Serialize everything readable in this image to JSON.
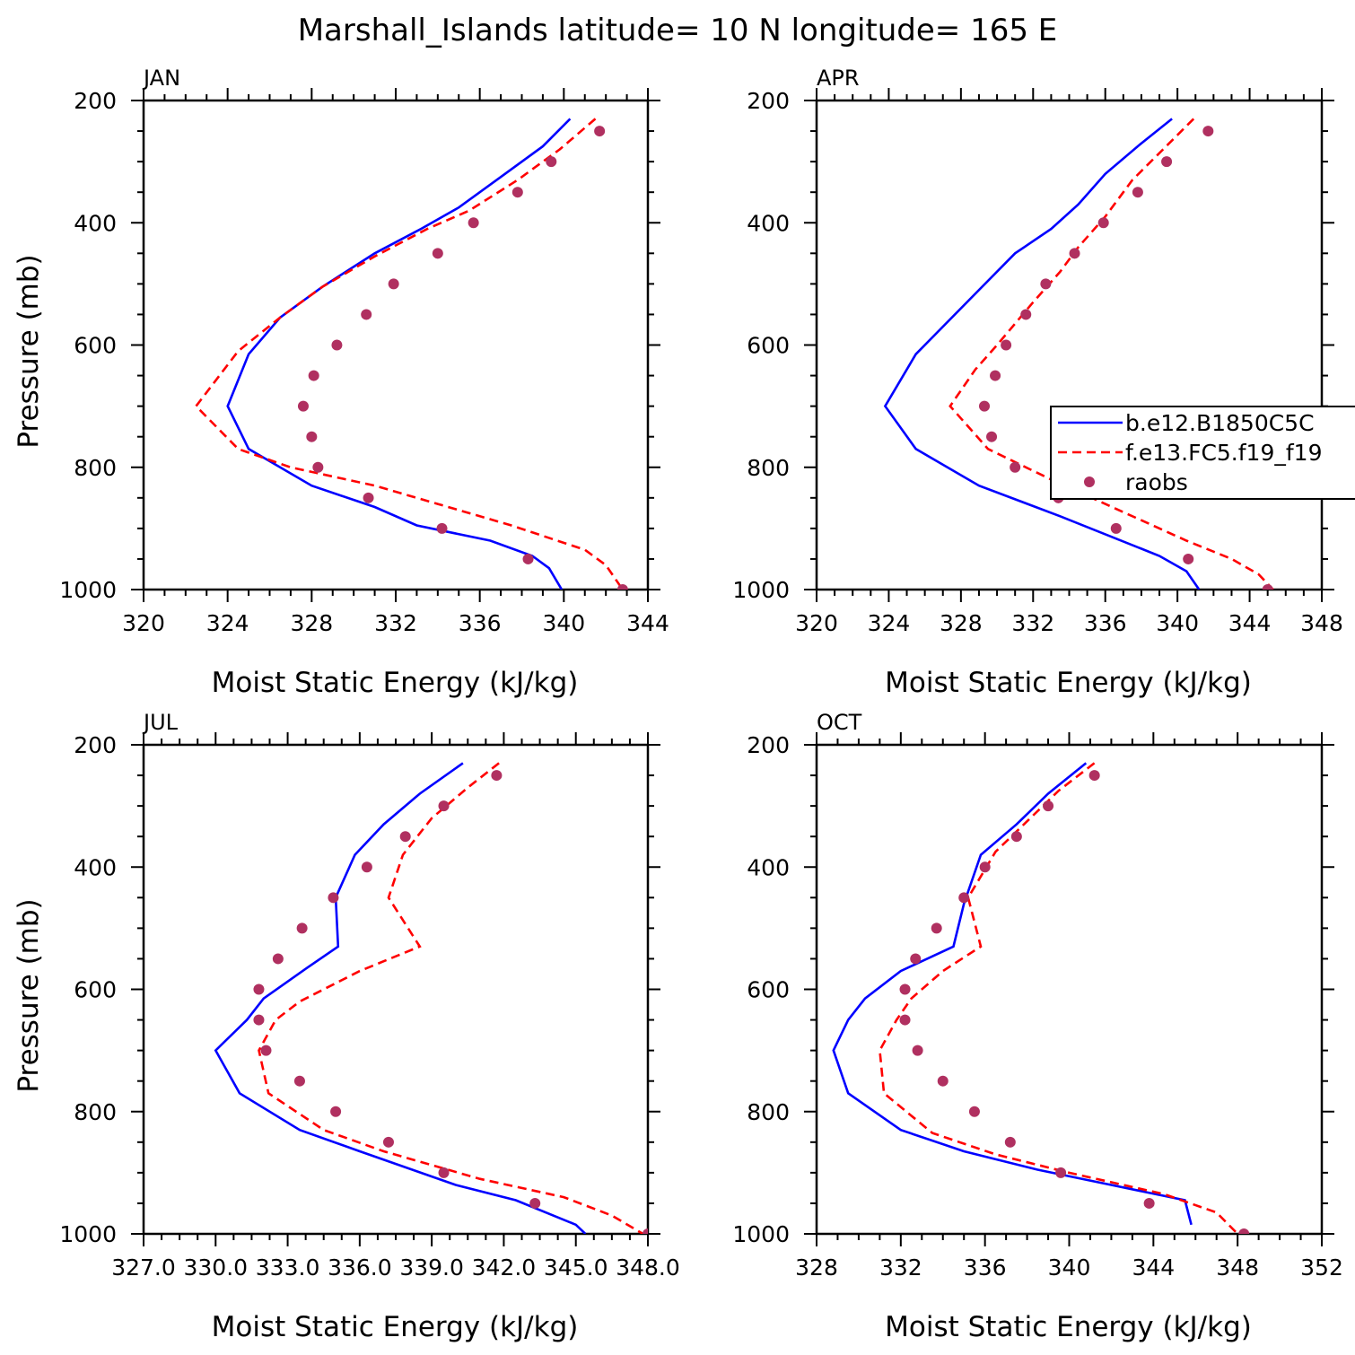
{
  "figure": {
    "title": "Marshall_Islands  latitude= 10 N longitude= 165 E"
  },
  "colors": {
    "model_b": "#0000ff",
    "model_f": "#ff0000",
    "raobs": "#b03060"
  },
  "chart_data": [
    {
      "type": "line",
      "panel_label": "JAN",
      "xlabel": "Moist Static Energy (kJ/kg)",
      "ylabel": "Pressure (mb)",
      "xlim": [
        320,
        344
      ],
      "ylim": [
        1000,
        200
      ],
      "y_inverted": true,
      "x_ticks": [
        320,
        324,
        328,
        332,
        336,
        340,
        344
      ],
      "y_ticks": [
        200,
        400,
        600,
        800,
        1000
      ],
      "series": [
        {
          "name": "b.e12.B1850C5C",
          "style": "solid",
          "x": [
            340.3,
            339.0,
            337.0,
            335.0,
            333.2,
            331.0,
            328.5,
            326.5,
            325.0,
            324.0,
            325.0,
            328.0,
            331.0,
            333.0,
            336.5,
            338.5,
            339.3,
            339.9
          ],
          "y": [
            230,
            275,
            325,
            375,
            410,
            450,
            505,
            555,
            615,
            700,
            770,
            830,
            865,
            895,
            920,
            945,
            965,
            1000
          ]
        },
        {
          "name": "f.e13.FC5.f19_f19",
          "style": "dashed",
          "x": [
            341.5,
            339.8,
            337.8,
            335.5,
            333.5,
            331.0,
            328.5,
            326.5,
            324.5,
            322.5,
            324.5,
            327.0,
            331.0,
            334.0,
            337.5,
            341.0,
            342.0,
            342.8
          ],
          "y": [
            230,
            280,
            330,
            380,
            410,
            455,
            505,
            555,
            610,
            700,
            770,
            800,
            830,
            860,
            895,
            935,
            960,
            1000
          ]
        },
        {
          "name": "raobs",
          "style": "dots",
          "x": [
            341.7,
            339.4,
            337.8,
            335.7,
            334.0,
            331.9,
            330.6,
            329.2,
            328.1,
            327.6,
            328.0,
            328.3,
            330.7,
            334.2,
            338.3,
            342.8
          ],
          "y": [
            250,
            300,
            350,
            400,
            450,
            500,
            550,
            600,
            650,
            700,
            750,
            800,
            850,
            900,
            950,
            1000
          ]
        }
      ]
    },
    {
      "type": "line",
      "panel_label": "APR",
      "xlabel": "Moist Static Energy (kJ/kg)",
      "ylabel": "",
      "xlim": [
        320,
        348
      ],
      "ylim": [
        1000,
        200
      ],
      "y_inverted": true,
      "x_ticks": [
        320,
        324,
        328,
        332,
        336,
        340,
        344,
        348
      ],
      "y_ticks": [
        200,
        400,
        600,
        800,
        1000
      ],
      "legend_position": "right",
      "series": [
        {
          "name": "b.e12.B1850C5C",
          "style": "solid",
          "x": [
            339.7,
            338.0,
            336.0,
            334.5,
            333.0,
            331.0,
            328.5,
            325.5,
            323.8,
            325.5,
            329.0,
            333.5,
            339.0,
            340.5,
            341.2
          ],
          "y": [
            230,
            270,
            320,
            370,
            410,
            450,
            525,
            615,
            700,
            770,
            830,
            880,
            945,
            970,
            1000
          ]
        },
        {
          "name": "f.e13.FC5.f19_f19",
          "style": "dashed",
          "x": [
            340.9,
            339.2,
            337.5,
            336.0,
            334.5,
            333.5,
            332.0,
            330.0,
            328.8,
            327.4,
            329.5,
            333.0,
            336.0,
            340.5,
            343.0,
            344.5,
            345.3
          ],
          "y": [
            230,
            280,
            330,
            390,
            440,
            480,
            530,
            600,
            640,
            700,
            770,
            820,
            860,
            920,
            950,
            975,
            1000
          ]
        },
        {
          "name": "raobs",
          "style": "dots",
          "x": [
            341.7,
            339.4,
            337.8,
            335.9,
            334.3,
            332.7,
            331.6,
            330.5,
            329.9,
            329.3,
            329.7,
            331.0,
            333.4,
            336.6,
            340.6,
            345.0
          ],
          "y": [
            250,
            300,
            350,
            400,
            450,
            500,
            550,
            600,
            650,
            700,
            750,
            800,
            850,
            900,
            950,
            1000
          ]
        }
      ]
    },
    {
      "type": "line",
      "panel_label": "JUL",
      "xlabel": "Moist Static Energy (kJ/kg)",
      "ylabel": "Pressure (mb)",
      "xlim": [
        327.0,
        348.0
      ],
      "ylim": [
        1000,
        200
      ],
      "y_inverted": true,
      "x_ticks": [
        327.0,
        330.0,
        333.0,
        336.0,
        339.0,
        342.0,
        345.0,
        348.0
      ],
      "x_tick_labels": [
        "327.0",
        "330.0",
        "333.0",
        "336.0",
        "339.0",
        "342.0",
        "345.0",
        "348.0"
      ],
      "y_ticks": [
        200,
        400,
        600,
        800,
        1000
      ],
      "series": [
        {
          "name": "b.e12.B1850C5C",
          "style": "solid",
          "x": [
            340.3,
            338.5,
            337.0,
            335.8,
            335.0,
            335.1,
            333.8,
            332.0,
            331.3,
            330.0,
            331.0,
            333.5,
            336.0,
            340.0,
            342.5,
            345.0,
            345.4
          ],
          "y": [
            230,
            280,
            330,
            380,
            450,
            530,
            565,
            615,
            650,
            700,
            770,
            830,
            865,
            920,
            945,
            985,
            1000
          ]
        },
        {
          "name": "f.e13.FC5.f19_f19",
          "style": "dashed",
          "x": [
            341.8,
            340.5,
            339.0,
            337.8,
            337.2,
            338.5,
            336.0,
            333.5,
            332.5,
            331.8,
            332.2,
            334.5,
            337.0,
            341.0,
            344.5,
            346.5,
            347.8
          ],
          "y": [
            230,
            270,
            320,
            380,
            450,
            530,
            570,
            620,
            650,
            700,
            770,
            830,
            865,
            910,
            940,
            970,
            1000
          ]
        },
        {
          "name": "raobs",
          "style": "dots",
          "x": [
            341.7,
            339.5,
            337.9,
            336.3,
            334.9,
            333.6,
            332.6,
            331.8,
            331.8,
            332.1,
            333.5,
            335.0,
            337.2,
            339.5,
            343.3,
            348.0
          ],
          "y": [
            250,
            300,
            350,
            400,
            450,
            500,
            550,
            600,
            650,
            700,
            750,
            800,
            850,
            900,
            950,
            1000
          ]
        }
      ]
    },
    {
      "type": "line",
      "panel_label": "OCT",
      "xlabel": "Moist Static Energy (kJ/kg)",
      "ylabel": "",
      "xlim": [
        328,
        352
      ],
      "ylim": [
        1000,
        200
      ],
      "y_inverted": true,
      "x_ticks": [
        328,
        332,
        336,
        340,
        344,
        348,
        352
      ],
      "y_ticks": [
        200,
        400,
        600,
        800,
        1000
      ],
      "series": [
        {
          "name": "b.e12.B1850C5C",
          "style": "solid",
          "x": [
            340.8,
            339.0,
            337.5,
            335.8,
            335.0,
            334.5,
            332.0,
            330.3,
            329.5,
            328.8,
            329.5,
            332.0,
            335.0,
            338.5,
            342.0,
            345.5,
            345.8
          ],
          "y": [
            230,
            280,
            330,
            380,
            460,
            530,
            570,
            615,
            650,
            700,
            770,
            830,
            865,
            895,
            920,
            945,
            985
          ]
        },
        {
          "name": "f.e13.FC5.f19_f19",
          "style": "dashed",
          "x": [
            341.2,
            339.5,
            338.0,
            336.5,
            335.2,
            335.8,
            334.0,
            332.5,
            331.8,
            331.0,
            331.2,
            333.5,
            336.5,
            340.0,
            344.5,
            347.0,
            348.0
          ],
          "y": [
            230,
            275,
            325,
            375,
            450,
            530,
            570,
            615,
            650,
            700,
            770,
            835,
            870,
            900,
            935,
            965,
            1000
          ]
        },
        {
          "name": "raobs",
          "style": "dots",
          "x": [
            341.2,
            339.0,
            337.5,
            336.0,
            335.0,
            333.7,
            332.7,
            332.2,
            332.2,
            332.8,
            334.0,
            335.5,
            337.2,
            339.6,
            343.8,
            348.3
          ],
          "y": [
            250,
            300,
            350,
            400,
            450,
            500,
            550,
            600,
            650,
            700,
            750,
            800,
            850,
            900,
            950,
            1000
          ]
        }
      ]
    }
  ]
}
